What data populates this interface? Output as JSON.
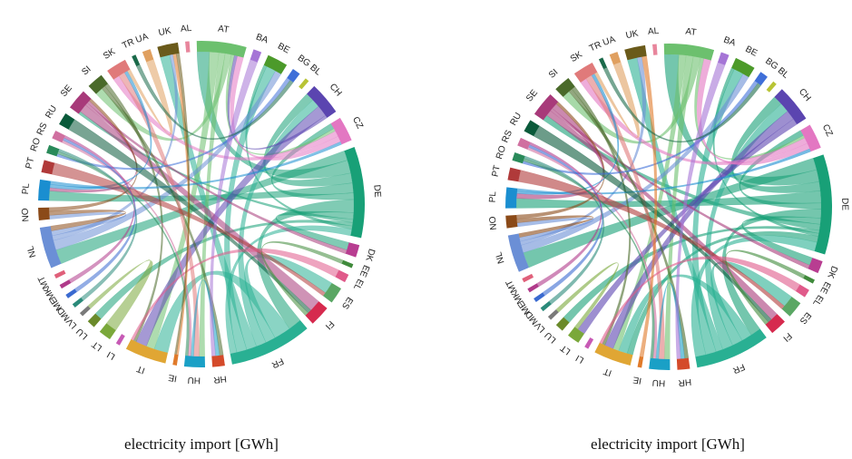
{
  "chart_data": [
    {
      "type": "chord",
      "caption": "electricity import [GWh]",
      "ribbon_opacity": 0.55,
      "nodes": [
        {
          "id": "AL",
          "color": "#e8869c",
          "size": 1
        },
        {
          "id": "AT",
          "color": "#6cc06e",
          "size": 12
        },
        {
          "id": "BA",
          "color": "#a575d6",
          "size": 2
        },
        {
          "id": "BE",
          "color": "#4c9a2a",
          "size": 5
        },
        {
          "id": "BG",
          "color": "#3f6fd8",
          "size": 2
        },
        {
          "id": "BL",
          "color": "#b8c436",
          "size": 1
        },
        {
          "id": "CH",
          "color": "#5b45b0",
          "size": 8
        },
        {
          "id": "CZ",
          "color": "#e377c2",
          "size": 6
        },
        {
          "id": "DE",
          "color": "#18a077",
          "size": 22
        },
        {
          "id": "DK",
          "color": "#b83d91",
          "size": 3
        },
        {
          "id": "EE",
          "color": "#3f8a3b",
          "size": 1
        },
        {
          "id": "EL",
          "color": "#e05a8a",
          "size": 2
        },
        {
          "id": "ES",
          "color": "#5aa764",
          "size": 4
        },
        {
          "id": "FI",
          "color": "#d62a4e",
          "size": 5
        },
        {
          "id": "FR",
          "color": "#29b093",
          "size": 20
        },
        {
          "id": "HR",
          "color": "#d44a2a",
          "size": 3
        },
        {
          "id": "HU",
          "color": "#1aa0c6",
          "size": 5
        },
        {
          "id": "IE",
          "color": "#e07a2a",
          "size": 1
        },
        {
          "id": "IT",
          "color": "#e0a634",
          "size": 10
        },
        {
          "id": "LI",
          "color": "#c75ab5",
          "size": 1
        },
        {
          "id": "LT",
          "color": "#7aa83a",
          "size": 3
        },
        {
          "id": "LU",
          "color": "#6a8a2a",
          "size": 2
        },
        {
          "id": "LV",
          "color": "#7a7a7a",
          "size": 1
        },
        {
          "id": "MD",
          "color": "#2a8a7a",
          "size": 1
        },
        {
          "id": "ME",
          "color": "#3a6ad0",
          "size": 1
        },
        {
          "id": "MK",
          "color": "#b03a8a",
          "size": 1
        },
        {
          "id": "MT",
          "color": "#e0607a",
          "size": 1
        },
        {
          "id": "NL",
          "color": "#6b8fd6",
          "size": 10
        },
        {
          "id": "NO",
          "color": "#8b4a18",
          "size": 3
        },
        {
          "id": "PL",
          "color": "#1a8ed0",
          "size": 5
        },
        {
          "id": "PT",
          "color": "#b03a3a",
          "size": 3
        },
        {
          "id": "RO",
          "color": "#2a8a5a",
          "size": 2
        },
        {
          "id": "RS",
          "color": "#d070a0",
          "size": 2
        },
        {
          "id": "RU",
          "color": "#0a5a3a",
          "size": 3
        },
        {
          "id": "SE",
          "color": "#a83a7a",
          "size": 5
        },
        {
          "id": "SI",
          "color": "#4a6a2a",
          "size": 4
        },
        {
          "id": "SK",
          "color": "#e07a7a",
          "size": 5
        },
        {
          "id": "TR",
          "color": "#1a6a4a",
          "size": 1
        },
        {
          "id": "UA",
          "color": "#e0a060",
          "size": 2
        },
        {
          "id": "UK",
          "color": "#6a5a1a",
          "size": 5
        }
      ],
      "flows": [
        [
          "DE",
          "NL",
          3
        ],
        [
          "DE",
          "AT",
          4
        ],
        [
          "DE",
          "CH",
          3
        ],
        [
          "DE",
          "PL",
          3
        ],
        [
          "DE",
          "CZ",
          2
        ],
        [
          "DE",
          "FR",
          4
        ],
        [
          "DE",
          "DK",
          2
        ],
        [
          "DE",
          "SE",
          1
        ],
        [
          "DE",
          "LU",
          1
        ],
        [
          "DE",
          "BE",
          1
        ],
        [
          "FR",
          "IT",
          5
        ],
        [
          "FR",
          "ES",
          3
        ],
        [
          "FR",
          "CH",
          3
        ],
        [
          "FR",
          "UK",
          3
        ],
        [
          "FR",
          "BE",
          3
        ],
        [
          "FR",
          "DE",
          2
        ],
        [
          "AT",
          "IT",
          3
        ],
        [
          "AT",
          "HU",
          2
        ],
        [
          "AT",
          "SI",
          2
        ],
        [
          "AT",
          "CZ",
          1
        ],
        [
          "CH",
          "IT",
          4
        ],
        [
          "CH",
          "AT",
          1
        ],
        [
          "CZ",
          "SK",
          2
        ],
        [
          "CZ",
          "AT",
          2
        ],
        [
          "NL",
          "BE",
          2
        ],
        [
          "NL",
          "UK",
          1
        ],
        [
          "NL",
          "NO",
          1
        ],
        [
          "SE",
          "FI",
          3
        ],
        [
          "SE",
          "DK",
          1
        ],
        [
          "SE",
          "PL",
          1
        ],
        [
          "NO",
          "NL",
          1
        ],
        [
          "NO",
          "SE",
          1
        ],
        [
          "SI",
          "HR",
          1
        ],
        [
          "SI",
          "IT",
          1
        ],
        [
          "SK",
          "HU",
          2
        ],
        [
          "HU",
          "HR",
          1
        ],
        [
          "PL",
          "SK",
          1
        ],
        [
          "PL",
          "CZ",
          1
        ],
        [
          "UA",
          "SK",
          1
        ],
        [
          "RU",
          "FI",
          1
        ],
        [
          "RS",
          "HU",
          1
        ],
        [
          "BG",
          "RO",
          1
        ],
        [
          "PT",
          "ES",
          1
        ],
        [
          "EE",
          "FI",
          1
        ],
        [
          "LT",
          "LV",
          1
        ],
        [
          "BA",
          "HR",
          1
        ],
        [
          "RO",
          "HU",
          1
        ],
        [
          "EL",
          "IT",
          1
        ],
        [
          "IE",
          "UK",
          1
        ],
        [
          "ME",
          "RS",
          1
        ],
        [
          "MK",
          "RS",
          1
        ],
        [
          "TR",
          "BG",
          1
        ],
        [
          "MD",
          "RO",
          1
        ],
        [
          "UK",
          "IE",
          1
        ]
      ]
    },
    {
      "type": "chord",
      "caption": "electricity import [GWh]",
      "ribbon_opacity": 0.6,
      "nodes": [
        {
          "id": "AL",
          "color": "#e8869c",
          "size": 1
        },
        {
          "id": "AT",
          "color": "#6cc06e",
          "size": 12
        },
        {
          "id": "BA",
          "color": "#a575d6",
          "size": 2
        },
        {
          "id": "BE",
          "color": "#4c9a2a",
          "size": 5
        },
        {
          "id": "BG",
          "color": "#3f6fd8",
          "size": 2
        },
        {
          "id": "BL",
          "color": "#b8c436",
          "size": 1
        },
        {
          "id": "CH",
          "color": "#5b45b0",
          "size": 9
        },
        {
          "id": "CZ",
          "color": "#e377c2",
          "size": 6
        },
        {
          "id": "DE",
          "color": "#18a077",
          "size": 24
        },
        {
          "id": "DK",
          "color": "#b83d91",
          "size": 3
        },
        {
          "id": "EE",
          "color": "#3f8a3b",
          "size": 1
        },
        {
          "id": "EL",
          "color": "#e05a8a",
          "size": 2
        },
        {
          "id": "ES",
          "color": "#5aa764",
          "size": 4
        },
        {
          "id": "FI",
          "color": "#d62a4e",
          "size": 4
        },
        {
          "id": "FR",
          "color": "#29b093",
          "size": 18
        },
        {
          "id": "HR",
          "color": "#d44a2a",
          "size": 3
        },
        {
          "id": "HU",
          "color": "#1aa0c6",
          "size": 5
        },
        {
          "id": "IE",
          "color": "#e07a2a",
          "size": 1
        },
        {
          "id": "IT",
          "color": "#e0a634",
          "size": 9
        },
        {
          "id": "LI",
          "color": "#c75ab5",
          "size": 1
        },
        {
          "id": "LT",
          "color": "#7aa83a",
          "size": 3
        },
        {
          "id": "LU",
          "color": "#6a8a2a",
          "size": 2
        },
        {
          "id": "LV",
          "color": "#7a7a7a",
          "size": 1
        },
        {
          "id": "MD",
          "color": "#2a8a7a",
          "size": 1
        },
        {
          "id": "ME",
          "color": "#3a6ad0",
          "size": 1
        },
        {
          "id": "MK",
          "color": "#b03a8a",
          "size": 1
        },
        {
          "id": "MT",
          "color": "#e0607a",
          "size": 1
        },
        {
          "id": "NL",
          "color": "#6b8fd6",
          "size": 9
        },
        {
          "id": "NO",
          "color": "#8b4a18",
          "size": 3
        },
        {
          "id": "PL",
          "color": "#1a8ed0",
          "size": 5
        },
        {
          "id": "PT",
          "color": "#b03a3a",
          "size": 3
        },
        {
          "id": "RO",
          "color": "#2a8a5a",
          "size": 2
        },
        {
          "id": "RS",
          "color": "#d070a0",
          "size": 2
        },
        {
          "id": "RU",
          "color": "#0a5a3a",
          "size": 3
        },
        {
          "id": "SE",
          "color": "#a83a7a",
          "size": 6
        },
        {
          "id": "SI",
          "color": "#4a6a2a",
          "size": 4
        },
        {
          "id": "SK",
          "color": "#e07a7a",
          "size": 5
        },
        {
          "id": "TR",
          "color": "#1a6a4a",
          "size": 1
        },
        {
          "id": "UA",
          "color": "#e0a060",
          "size": 2
        },
        {
          "id": "UK",
          "color": "#6a5a1a",
          "size": 5
        }
      ],
      "flows": [
        [
          "DE",
          "NL",
          4
        ],
        [
          "DE",
          "AT",
          4
        ],
        [
          "DE",
          "CH",
          3
        ],
        [
          "DE",
          "PL",
          4
        ],
        [
          "DE",
          "CZ",
          2
        ],
        [
          "DE",
          "FR",
          3
        ],
        [
          "DE",
          "DK",
          2
        ],
        [
          "DE",
          "SE",
          2
        ],
        [
          "DE",
          "LU",
          1
        ],
        [
          "DE",
          "BE",
          1
        ],
        [
          "DE",
          "IT",
          2
        ],
        [
          "FR",
          "IT",
          3
        ],
        [
          "FR",
          "ES",
          3
        ],
        [
          "FR",
          "CH",
          3
        ],
        [
          "FR",
          "UK",
          2
        ],
        [
          "FR",
          "BE",
          3
        ],
        [
          "FR",
          "DE",
          3
        ],
        [
          "AT",
          "IT",
          2
        ],
        [
          "AT",
          "HU",
          2
        ],
        [
          "AT",
          "SI",
          2
        ],
        [
          "AT",
          "CZ",
          1
        ],
        [
          "CH",
          "IT",
          3
        ],
        [
          "CH",
          "LT",
          2
        ],
        [
          "CZ",
          "SK",
          2
        ],
        [
          "CZ",
          "AT",
          2
        ],
        [
          "NL",
          "BE",
          2
        ],
        [
          "NL",
          "UK",
          1
        ],
        [
          "NL",
          "NO",
          1
        ],
        [
          "SE",
          "FI",
          2
        ],
        [
          "SE",
          "DK",
          1
        ],
        [
          "SE",
          "PL",
          2
        ],
        [
          "NO",
          "NL",
          1
        ],
        [
          "NO",
          "SE",
          1
        ],
        [
          "SI",
          "HR",
          1
        ],
        [
          "SI",
          "IT",
          1
        ],
        [
          "SK",
          "HU",
          2
        ],
        [
          "HU",
          "HR",
          1
        ],
        [
          "PL",
          "SK",
          1
        ],
        [
          "PL",
          "CZ",
          1
        ],
        [
          "UA",
          "SK",
          1
        ],
        [
          "RU",
          "FI",
          1
        ],
        [
          "RS",
          "HU",
          1
        ],
        [
          "BG",
          "RO",
          1
        ],
        [
          "PT",
          "ES",
          1
        ],
        [
          "EE",
          "FI",
          1
        ],
        [
          "LT",
          "LV",
          1
        ],
        [
          "BA",
          "HR",
          1
        ],
        [
          "RO",
          "HU",
          1
        ],
        [
          "EL",
          "IT",
          1
        ],
        [
          "IE",
          "UK",
          1
        ],
        [
          "ME",
          "RS",
          1
        ],
        [
          "MK",
          "RS",
          1
        ],
        [
          "TR",
          "BG",
          1
        ],
        [
          "MD",
          "RO",
          1
        ]
      ]
    }
  ]
}
